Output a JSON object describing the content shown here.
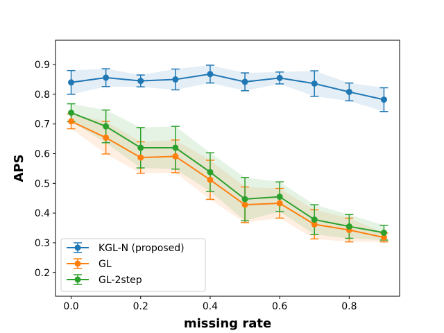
{
  "chart_data": {
    "type": "line",
    "xlabel": "missing rate",
    "ylabel": "APS",
    "xlim": [
      -0.045,
      0.945
    ],
    "ylim": [
      0.12,
      0.982
    ],
    "xticks": [
      0.0,
      0.2,
      0.4,
      0.6,
      0.8
    ],
    "xtick_labels": [
      "0.0",
      "0.2",
      "0.4",
      "0.6",
      "0.8"
    ],
    "yticks": [
      0.2,
      0.3,
      0.4,
      0.5,
      0.6,
      0.7,
      0.8,
      0.9
    ],
    "ytick_labels": [
      "0.2",
      "0.3",
      "0.4",
      "0.5",
      "0.6",
      "0.7",
      "0.8",
      "0.9"
    ],
    "legend_position": "lower-left",
    "x": [
      0.0,
      0.1,
      0.2,
      0.3,
      0.4,
      0.5,
      0.6,
      0.7,
      0.8,
      0.9
    ],
    "series": [
      {
        "name": "KGL-N (proposed)",
        "color": "#1f77b4",
        "values": [
          0.84,
          0.856,
          0.845,
          0.85,
          0.868,
          0.842,
          0.855,
          0.836,
          0.808,
          0.782
        ],
        "errors": [
          0.04,
          0.03,
          0.02,
          0.035,
          0.03,
          0.03,
          0.02,
          0.043,
          0.03,
          0.04
        ]
      },
      {
        "name": "GL",
        "color": "#ff7f0e",
        "values": [
          0.709,
          0.654,
          0.587,
          0.591,
          0.512,
          0.428,
          0.433,
          0.362,
          0.343,
          0.318
        ],
        "errors": [
          0.025,
          0.055,
          0.053,
          0.055,
          0.066,
          0.06,
          0.05,
          0.049,
          0.04,
          0.015
        ]
      },
      {
        "name": "GL-2step",
        "color": "#2ca02c",
        "values": [
          0.738,
          0.692,
          0.62,
          0.62,
          0.538,
          0.447,
          0.455,
          0.378,
          0.355,
          0.334
        ],
        "errors": [
          0.03,
          0.055,
          0.068,
          0.072,
          0.065,
          0.073,
          0.05,
          0.05,
          0.04,
          0.025
        ]
      }
    ]
  }
}
